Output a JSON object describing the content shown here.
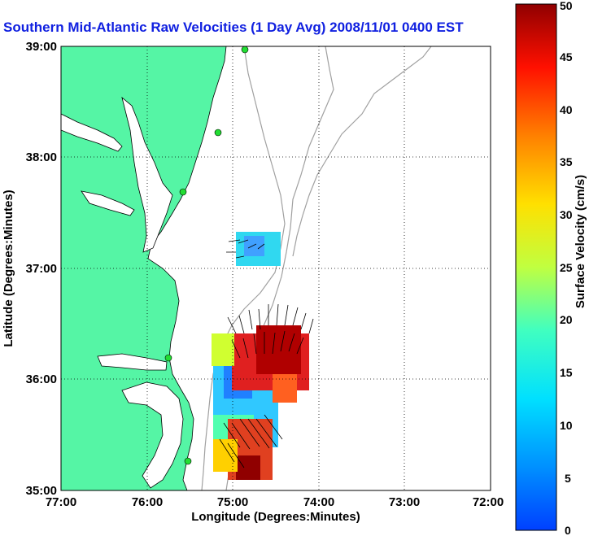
{
  "title": "Southern Mid-Atlantic Raw Velocities (1 Day Avg) 2008/11/01 0400 EST",
  "map": {
    "x_axis": {
      "label": "Longitude (Degrees:Minutes)",
      "ticks": [
        "77:00",
        "76:00",
        "75:00",
        "74:00",
        "73:00",
        "72:00"
      ],
      "range": [
        -77,
        -72
      ]
    },
    "y_axis": {
      "label": "Latitude (Degrees:Minutes)",
      "ticks": [
        "39:00",
        "38:00",
        "37:00",
        "36:00",
        "35:00"
      ],
      "range": [
        35,
        39
      ]
    },
    "grid": "dotted",
    "land_color": "#55f5a5",
    "isobath_color": "#a0a0a0",
    "station_color": "#22dd33"
  },
  "colorbar": {
    "label": "Surface Velocity (cm/s)",
    "min": 0,
    "max": 50,
    "ticks": [
      "0",
      "5",
      "10",
      "15",
      "20",
      "25",
      "30",
      "35",
      "40",
      "45",
      "50"
    ],
    "colormap": "jet"
  }
}
